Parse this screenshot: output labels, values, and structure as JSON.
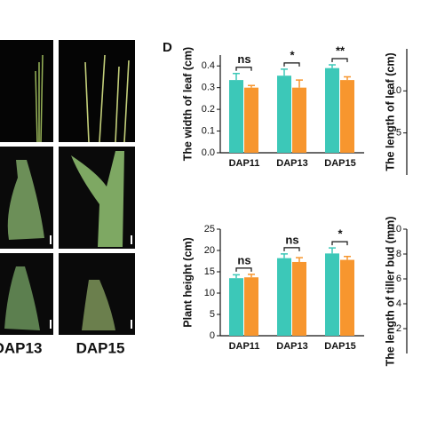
{
  "panel_label": "D",
  "photo_labels": [
    "DAP13",
    "DAP15"
  ],
  "chart_data": [
    {
      "type": "bar",
      "ylabel": "The width of leaf (cm)",
      "categories": [
        "DAP11",
        "DAP13",
        "DAP15"
      ],
      "series": [
        {
          "color": "#3cc8b8",
          "values": [
            0.335,
            0.355,
            0.39
          ],
          "errors": [
            0.03,
            0.03,
            0.015
          ]
        },
        {
          "color": "#f7962e",
          "values": [
            0.3,
            0.3,
            0.335
          ],
          "errors": [
            0.01,
            0.035,
            0.015
          ]
        }
      ],
      "annotations": [
        "ns",
        "*",
        "**"
      ],
      "ylim": [
        0,
        0.45
      ],
      "yticks": [
        {
          "value": 0,
          "label": "0.0"
        },
        0.1,
        0.2,
        0.3,
        0.4
      ]
    },
    {
      "type": "bar",
      "ylabel": "Plant height (cm)",
      "categories": [
        "DAP11",
        "DAP13",
        "DAP15"
      ],
      "series": [
        {
          "color": "#3cc8b8",
          "values": [
            13.5,
            18.2,
            19.3
          ],
          "errors": [
            0.8,
            1.0,
            1.3
          ]
        },
        {
          "color": "#f7962e",
          "values": [
            13.7,
            17.3,
            17.8
          ],
          "errors": [
            0.7,
            1.0,
            0.8
          ]
        }
      ],
      "annotations": [
        "ns",
        "ns",
        "*"
      ],
      "ylim": [
        0,
        25
      ],
      "yticks": [
        0,
        5,
        10,
        15,
        20,
        25
      ]
    },
    {
      "type": "bar",
      "ylabel": "The length of leaf (cm)",
      "ylim": [
        0,
        15
      ],
      "yticks": [
        5,
        10
      ]
    },
    {
      "type": "bar",
      "ylabel": "The length of tiller bud (mm)",
      "ylim": [
        0,
        10
      ],
      "yticks": [
        2,
        4,
        6,
        8,
        10
      ]
    }
  ]
}
